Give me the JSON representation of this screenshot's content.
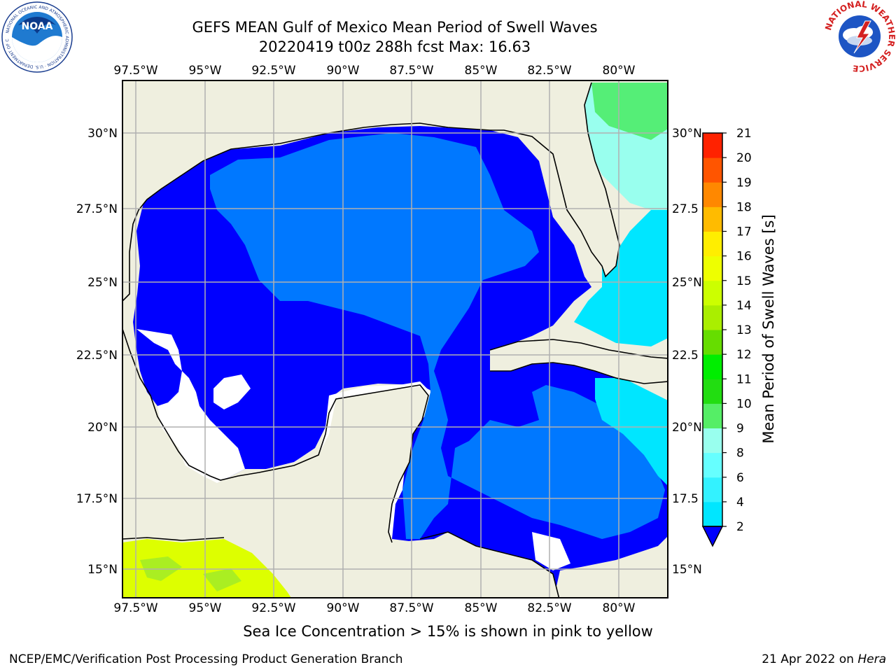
{
  "title": "GEFS MEAN Gulf of Mexico Mean Period of Swell Waves",
  "subtitle": "20220419 t00z 288h fcst   Max: 16.63",
  "caption": "Sea Ice Concentration > 15% is shown in pink to yellow",
  "footer": {
    "left": "NCEP/EMC/Verification Post Processing Product Generation Branch",
    "date": "21 Apr 2022 on ",
    "machine": "Hera"
  },
  "logos": {
    "left": "NOAA",
    "left_ring": "NATIONAL OCEANIC AND ATMOSPHERIC ADMINISTRATION · U.S. DEPARTMENT OF COMMERCE",
    "right_ring": "NATIONAL WEATHER SERVICE"
  },
  "map": {
    "lon_labels": [
      "97.5°W",
      "95°W",
      "92.5°W",
      "90°W",
      "87.5°W",
      "85°W",
      "82.5°W",
      "80°W"
    ],
    "lat_labels_left": [
      "30°N",
      "27.5°N",
      "25°N",
      "22.5°N",
      "20°N",
      "17.5°N",
      "15°N"
    ],
    "lat_labels_right": [
      "30°N",
      "27.5",
      "25°N",
      "22.5",
      "20°N",
      "17.5",
      "15°N"
    ],
    "land_color": "#efefdf",
    "grid_color": "#b0b0b0"
  },
  "colorbar": {
    "label": "Mean Period of Swell Waves [s]",
    "levels": [
      "2",
      "4",
      "6",
      "8",
      "9",
      "10",
      "11",
      "12",
      "13",
      "14",
      "15",
      "16",
      "17",
      "18",
      "19",
      "20",
      "21"
    ],
    "colors": [
      "#0078ff",
      "#00e6ff",
      "#33f2ff",
      "#66ffff",
      "#99ffee",
      "#55ee66",
      "#22dd11",
      "#00ee00",
      "#66dd00",
      "#aaee00",
      "#ccff00",
      "#eeff00",
      "#ffee00",
      "#ffbb00",
      "#ff8800",
      "#ff5500",
      "#ff2200",
      "#ff0000"
    ],
    "under_color": "#0000ff"
  }
}
